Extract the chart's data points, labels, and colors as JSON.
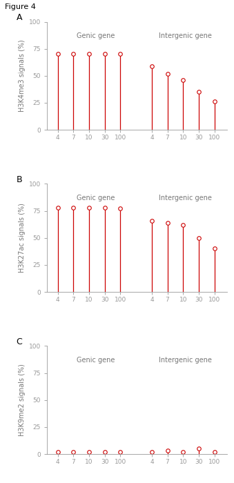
{
  "figure_label": "Figure 4",
  "panels": [
    {
      "label": "A",
      "ylabel": "H3K4me3 signals (%)",
      "genic_values": [
        70,
        70,
        70,
        70,
        70
      ],
      "intergenic_values": [
        59,
        52,
        46,
        35,
        26
      ],
      "ylim": [
        0,
        100
      ],
      "yticks": [
        0,
        25,
        50,
        75,
        100
      ]
    },
    {
      "label": "B",
      "ylabel": "H3K27ac signals (%)",
      "genic_values": [
        78,
        78,
        78,
        78,
        77
      ],
      "intergenic_values": [
        66,
        64,
        62,
        50,
        40
      ],
      "ylim": [
        0,
        100
      ],
      "yticks": [
        0,
        25,
        50,
        75,
        100
      ]
    },
    {
      "label": "C",
      "ylabel": "H3K9me2 signals (%)",
      "genic_values": [
        2,
        2,
        2,
        2,
        2
      ],
      "intergenic_values": [
        2,
        3,
        2,
        5,
        2
      ],
      "ylim": [
        0,
        100
      ],
      "yticks": [
        0,
        25,
        50,
        75,
        100
      ]
    }
  ],
  "x_labels": [
    "4",
    "7",
    "10",
    "30",
    "100"
  ],
  "x_positions_genic": [
    1,
    2,
    3,
    4,
    5
  ],
  "x_positions_intergenic": [
    7,
    8,
    9,
    10,
    11
  ],
  "genic_label": "Genic gene",
  "intergenic_label": "Intergenic gene",
  "line_color": "#cc0000",
  "marker_facecolor": "white",
  "marker_edgecolor": "#cc0000",
  "marker_size": 4,
  "background_color": "#ffffff",
  "text_color": "#777777",
  "spine_color": "#999999"
}
